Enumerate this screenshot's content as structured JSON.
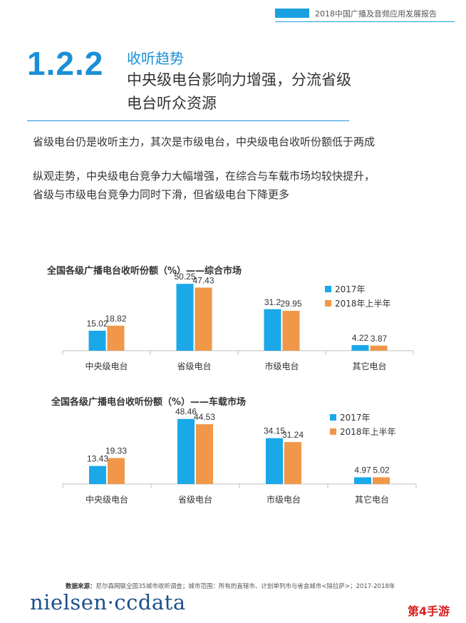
{
  "header": {
    "report_title": "2018中国广播及音频应用发展报告"
  },
  "section": {
    "number": "1.2.2",
    "topic": "收听趋势",
    "title_line1": "中央级电台影响力增强，分流省级",
    "title_line2": "电台听众资源"
  },
  "paragraphs": {
    "p1": "省级电台仍是收听主力，其次是市级电台，中央级电台收听份额低于两成",
    "p2_line1": "纵观走势，中央级电台竞争力大幅增强，在综合与车载市场均较快提升，",
    "p2_line2": "省级与市级电台竞争力同时下滑，但省级电台下降更多"
  },
  "colors": {
    "accent": "#1a8fd6",
    "series_2017": "#1aa8e8",
    "series_2018h1": "#f0974a"
  },
  "chart_data": [
    {
      "type": "bar",
      "title": "全国各级广播电台收听份额（%）——综合市场",
      "categories": [
        "中央级电台",
        "省级电台",
        "市级电台",
        "其它电台"
      ],
      "series": [
        {
          "name": "2017年",
          "values": [
            15.02,
            50.25,
            31.2,
            4.22
          ]
        },
        {
          "name": "2018年上半年",
          "values": [
            18.82,
            47.43,
            29.95,
            3.87
          ]
        }
      ],
      "ylim": [
        0,
        60
      ],
      "legend": "top-right",
      "grid": false
    },
    {
      "type": "bar",
      "title": "全国各级广播电台收听份额（%）——车载市场",
      "categories": [
        "中央级电台",
        "省级电台",
        "市级电台",
        "其它电台"
      ],
      "series": [
        {
          "name": "2017年",
          "values": [
            13.43,
            48.46,
            34.15,
            4.97
          ]
        },
        {
          "name": "2018年上半年",
          "values": [
            19.33,
            44.53,
            31.24,
            5.02
          ]
        }
      ],
      "ylim": [
        0,
        60
      ],
      "legend": "top-right",
      "grid": false
    }
  ],
  "footer": {
    "source_label": "数据来源：",
    "source_text": "尼尔森网联全国35城市收听调查；城市范围：所有的直辖市、计划单列市与省会城市<除拉萨>；2017-2018年",
    "logo_text": "nielsen·ccdata",
    "watermark": "第4手游"
  }
}
